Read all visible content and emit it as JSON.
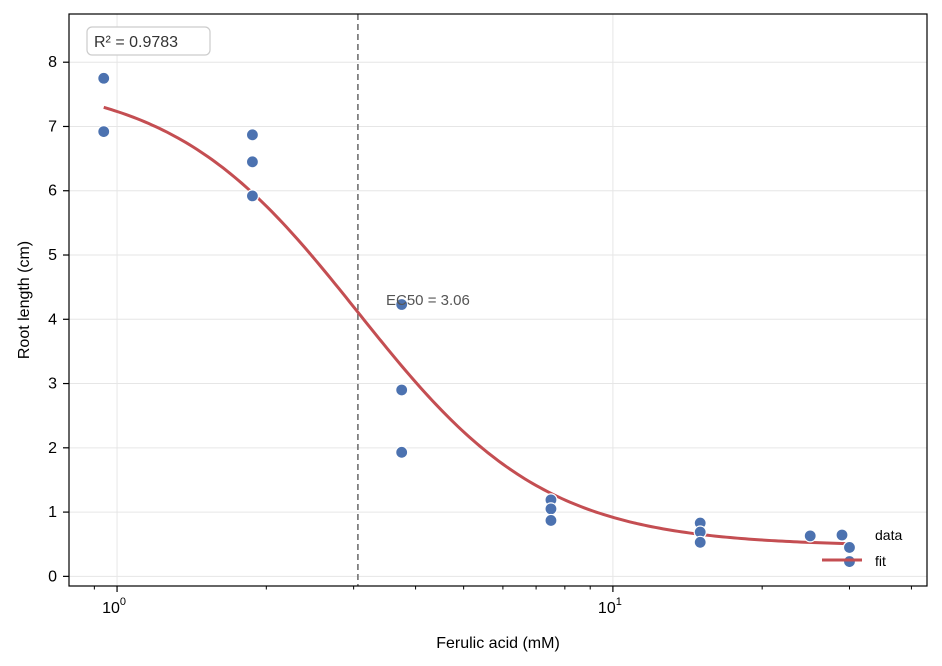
{
  "chart_data": {
    "type": "scatter",
    "xlabel": "Ferulic acid (mM)",
    "ylabel": "Root length (cm)",
    "xscale": "log",
    "xlim": [
      0.8,
      43
    ],
    "ylim": [
      -0.15,
      8.75
    ],
    "yticks": [
      0,
      1,
      2,
      3,
      4,
      5,
      6,
      7,
      8
    ],
    "xticks_major": [
      {
        "value": 1,
        "base": "10",
        "exp": "0"
      },
      {
        "value": 10,
        "base": "10",
        "exp": "1"
      }
    ],
    "grid": true,
    "legend_position": "lower-right",
    "series": [
      {
        "name": "data",
        "kind": "scatter",
        "color": "#4c72b0",
        "points": [
          {
            "x": 0.94,
            "y": 7.75
          },
          {
            "x": 0.94,
            "y": 6.92
          },
          {
            "x": 1.875,
            "y": 6.87
          },
          {
            "x": 1.875,
            "y": 6.45
          },
          {
            "x": 1.875,
            "y": 5.92
          },
          {
            "x": 3.75,
            "y": 4.23
          },
          {
            "x": 3.75,
            "y": 2.9
          },
          {
            "x": 3.75,
            "y": 1.93
          },
          {
            "x": 7.5,
            "y": 1.19
          },
          {
            "x": 7.5,
            "y": 1.05
          },
          {
            "x": 7.5,
            "y": 0.87
          },
          {
            "x": 15,
            "y": 0.83
          },
          {
            "x": 15,
            "y": 0.69
          },
          {
            "x": 15,
            "y": 0.53
          },
          {
            "x": 25,
            "y": 0.63
          },
          {
            "x": 30,
            "y": 0.45
          },
          {
            "x": 30,
            "y": 0.23
          }
        ]
      },
      {
        "name": "fit",
        "kind": "line",
        "color": "#c44e52",
        "model": {
          "bottom": 0.47,
          "top": 7.75,
          "ec50": 3.06,
          "hill": 2.3
        },
        "x_range": [
          0.94,
          30
        ]
      }
    ],
    "ec50": {
      "value": 3.06,
      "label": "EC50 = 3.06"
    },
    "r2_label": "R² = 0.9783"
  }
}
